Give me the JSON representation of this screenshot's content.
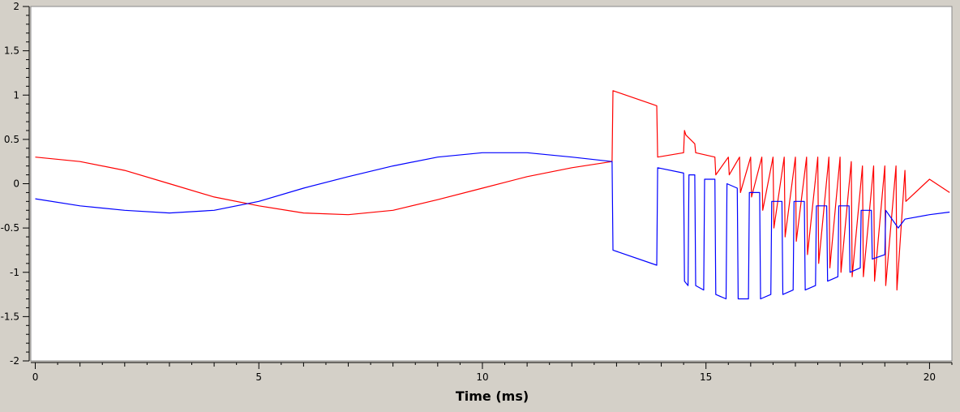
{
  "chart_data": {
    "type": "line",
    "title": "",
    "xlabel": "Time (ms)",
    "ylabel": "",
    "xlim": [
      -0.1,
      20.5
    ],
    "ylim": [
      -2,
      2
    ],
    "grid": false,
    "legend": "none",
    "x_ticks": [
      0,
      5,
      10,
      15,
      20
    ],
    "x_tick_labels": [
      "0",
      "5",
      "10",
      "15",
      "20"
    ],
    "y_ticks": [
      2,
      1.5,
      1,
      0.5,
      0,
      -0.5,
      -1,
      -1.5,
      -2
    ],
    "y_tick_labels": [
      "2",
      "1.5",
      "1",
      "0.5",
      "0",
      "-0.5",
      "-1",
      "-1.5",
      "-2"
    ],
    "series": [
      {
        "color": "#ff0000",
        "x": [
          0,
          1,
          2,
          3,
          4,
          5,
          6,
          7,
          8,
          9,
          10,
          11,
          12,
          12.9,
          12.92,
          13.9,
          13.92,
          14.5,
          14.52,
          14.55,
          14.75,
          14.77,
          15.2,
          15.22,
          15.5,
          15.52,
          15.75,
          15.77,
          16.0,
          16.02,
          16.25,
          16.27,
          16.5,
          16.52,
          16.75,
          16.77,
          17.0,
          17.02,
          17.25,
          17.27,
          17.5,
          17.52,
          17.75,
          17.77,
          18.0,
          18.02,
          18.25,
          18.27,
          18.5,
          18.52,
          18.75,
          18.77,
          19.0,
          19.02,
          19.25,
          19.27,
          19.45,
          19.47,
          20,
          20.45
        ],
        "y": [
          0.3,
          0.25,
          0.15,
          0.0,
          -0.15,
          -0.25,
          -0.33,
          -0.35,
          -0.3,
          -0.18,
          -0.05,
          0.08,
          0.18,
          0.25,
          1.05,
          0.88,
          0.3,
          0.35,
          0.6,
          0.55,
          0.45,
          0.35,
          0.3,
          0.1,
          0.3,
          0.1,
          0.3,
          -0.1,
          0.3,
          -0.15,
          0.3,
          -0.3,
          0.3,
          -0.5,
          0.3,
          -0.6,
          0.3,
          -0.65,
          0.3,
          -0.8,
          0.3,
          -0.9,
          0.3,
          -0.95,
          0.3,
          -1.0,
          0.25,
          -1.05,
          0.2,
          -1.05,
          0.2,
          -1.1,
          0.2,
          -1.15,
          0.2,
          -1.2,
          0.15,
          -0.2,
          0.05,
          -0.1
        ]
      },
      {
        "color": "#0000ff",
        "x": [
          0,
          1,
          2,
          3,
          4,
          5,
          6,
          7,
          8,
          9,
          10,
          11,
          12,
          12.9,
          12.92,
          13.9,
          13.92,
          14.5,
          14.52,
          14.6,
          14.62,
          14.75,
          14.77,
          14.95,
          14.97,
          15.2,
          15.22,
          15.45,
          15.47,
          15.7,
          15.72,
          15.95,
          15.97,
          16.2,
          16.22,
          16.45,
          16.47,
          16.7,
          16.72,
          16.95,
          16.97,
          17.2,
          17.22,
          17.45,
          17.47,
          17.7,
          17.72,
          17.95,
          17.97,
          18.2,
          18.22,
          18.45,
          18.47,
          18.7,
          18.72,
          19.0,
          19.02,
          19.3,
          19.45,
          20,
          20.45
        ],
        "y": [
          -0.17,
          -0.25,
          -0.3,
          -0.33,
          -0.3,
          -0.2,
          -0.05,
          0.08,
          0.2,
          0.3,
          0.35,
          0.35,
          0.3,
          0.25,
          -0.75,
          -0.92,
          0.18,
          0.12,
          -1.1,
          -1.15,
          0.1,
          0.1,
          -1.15,
          -1.2,
          0.05,
          0.05,
          -1.25,
          -1.3,
          0.0,
          -0.05,
          -1.3,
          -1.3,
          -0.1,
          -0.1,
          -1.3,
          -1.25,
          -0.2,
          -0.2,
          -1.25,
          -1.2,
          -0.2,
          -0.2,
          -1.2,
          -1.15,
          -0.25,
          -0.25,
          -1.1,
          -1.05,
          -0.25,
          -0.25,
          -1.0,
          -0.95,
          -0.3,
          -0.3,
          -0.85,
          -0.8,
          -0.3,
          -0.5,
          -0.4,
          -0.35,
          -0.32
        ]
      }
    ]
  }
}
